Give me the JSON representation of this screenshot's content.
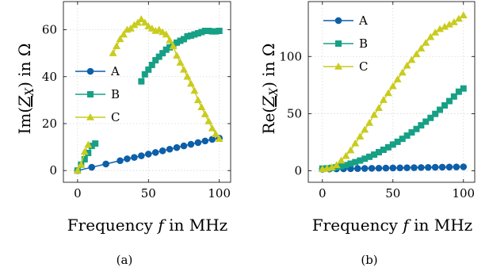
{
  "chart_data": [
    {
      "type": "line",
      "panel_label": "(a)",
      "ylabel": "Im(Z_X) in Ω",
      "ylabel_parts": {
        "pre": "Im(",
        "sym": "Z",
        "sub": "X",
        "post": ") in Ω"
      },
      "xlabel": "Frequency f in MHz",
      "xlabel_parts": {
        "pre": "Frequency ",
        "sym": "f",
        "post": " in MHz"
      },
      "xlim": [
        -10,
        108
      ],
      "ylim": [
        -5,
        72
      ],
      "xticks": [
        "0",
        "50",
        "100"
      ],
      "yticks": [
        "0",
        "20",
        "40",
        "60"
      ],
      "grid": true,
      "legend_position": "center-left",
      "series": [
        {
          "name": "A",
          "color": "#0d5fa8",
          "marker": "circle",
          "segments": [
            [
              [
                0,
                0
              ],
              [
                10,
                1.4
              ],
              [
                20,
                2.8
              ],
              [
                30,
                4.2
              ],
              [
                35,
                5.0
              ],
              [
                40,
                5.6
              ],
              [
                45,
                6.3
              ],
              [
                50,
                7.0
              ],
              [
                55,
                7.7
              ],
              [
                60,
                8.4
              ],
              [
                65,
                9.1
              ],
              [
                70,
                9.8
              ],
              [
                75,
                10.5
              ],
              [
                80,
                11.2
              ],
              [
                85,
                11.9
              ],
              [
                90,
                12.6
              ],
              [
                95,
                13.3
              ],
              [
                100,
                13.8
              ]
            ]
          ]
        },
        {
          "name": "B",
          "color": "#16a085",
          "marker": "square",
          "segments": [
            [
              [
                0,
                0
              ],
              [
                2.5,
                2.5
              ],
              [
                5,
                4.8
              ],
              [
                7.5,
                7.5
              ],
              [
                10,
                10.5
              ],
              [
                12.5,
                11.5
              ]
            ],
            [
              [
                45,
                38
              ],
              [
                47.5,
                41
              ],
              [
                50,
                43
              ],
              [
                52.5,
                45
              ],
              [
                55,
                47
              ],
              [
                57.5,
                48.5
              ],
              [
                60,
                50
              ],
              [
                62.5,
                51.5
              ],
              [
                65,
                52.5
              ],
              [
                67.5,
                53.5
              ],
              [
                70,
                54.5
              ],
              [
                72.5,
                55.3
              ],
              [
                75,
                56
              ],
              [
                77.5,
                57.2
              ],
              [
                80,
                57.5
              ],
              [
                82.5,
                58
              ],
              [
                85,
                58.5
              ],
              [
                87.5,
                59
              ],
              [
                90,
                59.5
              ],
              [
                92.5,
                59.5
              ],
              [
                95,
                59.3
              ],
              [
                97.5,
                59.3
              ],
              [
                100,
                59.5
              ]
            ]
          ]
        },
        {
          "name": "C",
          "color": "#c9cc1d",
          "marker": "triangle",
          "segments": [
            [
              [
                0,
                0
              ],
              [
                2.5,
                2.5
              ],
              [
                5,
                8
              ],
              [
                7.5,
                11
              ]
            ],
            [
              [
                25,
                50
              ],
              [
                27.5,
                53
              ],
              [
                30,
                56
              ],
              [
                32.5,
                58
              ],
              [
                35,
                60
              ],
              [
                37.5,
                60.5
              ],
              [
                40,
                62
              ],
              [
                42.5,
                63
              ],
              [
                45,
                64.5
              ],
              [
                47.5,
                63
              ],
              [
                50,
                61.5
              ],
              [
                52.5,
                60.5
              ],
              [
                55,
                59.5
              ],
              [
                57.5,
                60
              ],
              [
                60,
                59
              ],
              [
                62.5,
                58
              ],
              [
                65,
                55.5
              ],
              [
                67.5,
                53
              ],
              [
                70,
                49
              ],
              [
                72.5,
                46
              ],
              [
                75,
                43
              ],
              [
                77.5,
                40
              ],
              [
                80,
                37
              ],
              [
                82.5,
                34
              ],
              [
                85,
                30
              ],
              [
                87.5,
                27
              ],
              [
                90,
                24
              ],
              [
                92.5,
                21
              ],
              [
                95,
                18
              ],
              [
                97.5,
                15.5
              ],
              [
                100,
                13.5
              ]
            ]
          ]
        }
      ]
    },
    {
      "type": "line",
      "panel_label": "(b)",
      "ylabel": "Re(Z_X) in Ω",
      "ylabel_parts": {
        "pre": "Re(",
        "sym": "Z",
        "sub": "X",
        "post": ") in Ω"
      },
      "xlabel": "Frequency f in MHz",
      "xlabel_parts": {
        "pre": "Frequency ",
        "sym": "f",
        "post": " in MHz"
      },
      "xlim": [
        -10,
        108
      ],
      "ylim": [
        -10,
        148
      ],
      "xticks": [
        "0",
        "50",
        "100"
      ],
      "yticks": [
        "0",
        "50",
        "100"
      ],
      "grid": true,
      "legend_position": "top-left",
      "series": [
        {
          "name": "A",
          "color": "#0d5fa8",
          "marker": "circle",
          "segments": [
            [
              [
                0,
                1.5
              ],
              [
                5,
                1.6
              ],
              [
                10,
                1.7
              ],
              [
                15,
                1.8
              ],
              [
                20,
                1.9
              ],
              [
                25,
                2.0
              ],
              [
                30,
                2.1
              ],
              [
                35,
                2.2
              ],
              [
                40,
                2.3
              ],
              [
                45,
                2.4
              ],
              [
                50,
                2.5
              ],
              [
                55,
                2.6
              ],
              [
                60,
                2.7
              ],
              [
                65,
                2.8
              ],
              [
                70,
                2.9
              ],
              [
                75,
                3.0
              ],
              [
                80,
                3.1
              ],
              [
                85,
                3.2
              ],
              [
                90,
                3.3
              ],
              [
                95,
                3.4
              ],
              [
                100,
                3.5
              ]
            ]
          ]
        },
        {
          "name": "B",
          "color": "#16a085",
          "marker": "square",
          "segments": [
            [
              [
                0,
                2
              ],
              [
                3.3,
                2.2
              ],
              [
                6.7,
                2.6
              ],
              [
                10,
                3.2
              ],
              [
                13.3,
                4
              ],
              [
                16.7,
                5
              ],
              [
                20,
                6.3
              ],
              [
                23.3,
                7.6
              ],
              [
                26.7,
                9
              ],
              [
                30,
                10.6
              ],
              [
                33.3,
                12.3
              ],
              [
                36.7,
                14.2
              ],
              [
                40,
                16.3
              ],
              [
                43.3,
                18.4
              ],
              [
                46.7,
                20.6
              ],
              [
                50,
                23
              ],
              [
                53.3,
                25.4
              ],
              [
                56.7,
                28
              ],
              [
                60,
                30.8
              ],
              [
                63.3,
                33.6
              ],
              [
                66.7,
                36.6
              ],
              [
                70,
                39.8
              ],
              [
                73.3,
                43
              ],
              [
                76.7,
                46.3
              ],
              [
                80,
                49.8
              ],
              [
                83.3,
                53.4
              ],
              [
                86.7,
                57.2
              ],
              [
                90,
                61
              ],
              [
                93.3,
                65
              ],
              [
                96.7,
                69.2
              ],
              [
                100,
                72
              ]
            ]
          ]
        },
        {
          "name": "C",
          "color": "#c9cc1d",
          "marker": "triangle",
          "segments": [
            [
              [
                0,
                1.5
              ],
              [
                3.3,
                2
              ],
              [
                6.7,
                3
              ],
              [
                10,
                5
              ],
              [
                13.3,
                9
              ],
              [
                16.7,
                13
              ],
              [
                20,
                18
              ],
              [
                23.3,
                24
              ],
              [
                26.7,
                30
              ],
              [
                30,
                36
              ],
              [
                33.3,
                42
              ],
              [
                36.7,
                49
              ],
              [
                40,
                55
              ],
              [
                43.3,
                62
              ],
              [
                46.7,
                68
              ],
              [
                50,
                74
              ],
              [
                53.3,
                80
              ],
              [
                56.7,
                86
              ],
              [
                60,
                92
              ],
              [
                63.3,
                97
              ],
              [
                66.7,
                102
              ],
              [
                70,
                107
              ],
              [
                73.3,
                112
              ],
              [
                76.7,
                117
              ],
              [
                80,
                121
              ],
              [
                83.3,
                124
              ],
              [
                86.7,
                126
              ],
              [
                90,
                128
              ],
              [
                93.3,
                130
              ],
              [
                96.7,
                133
              ],
              [
                100,
                136
              ]
            ]
          ]
        }
      ]
    }
  ]
}
